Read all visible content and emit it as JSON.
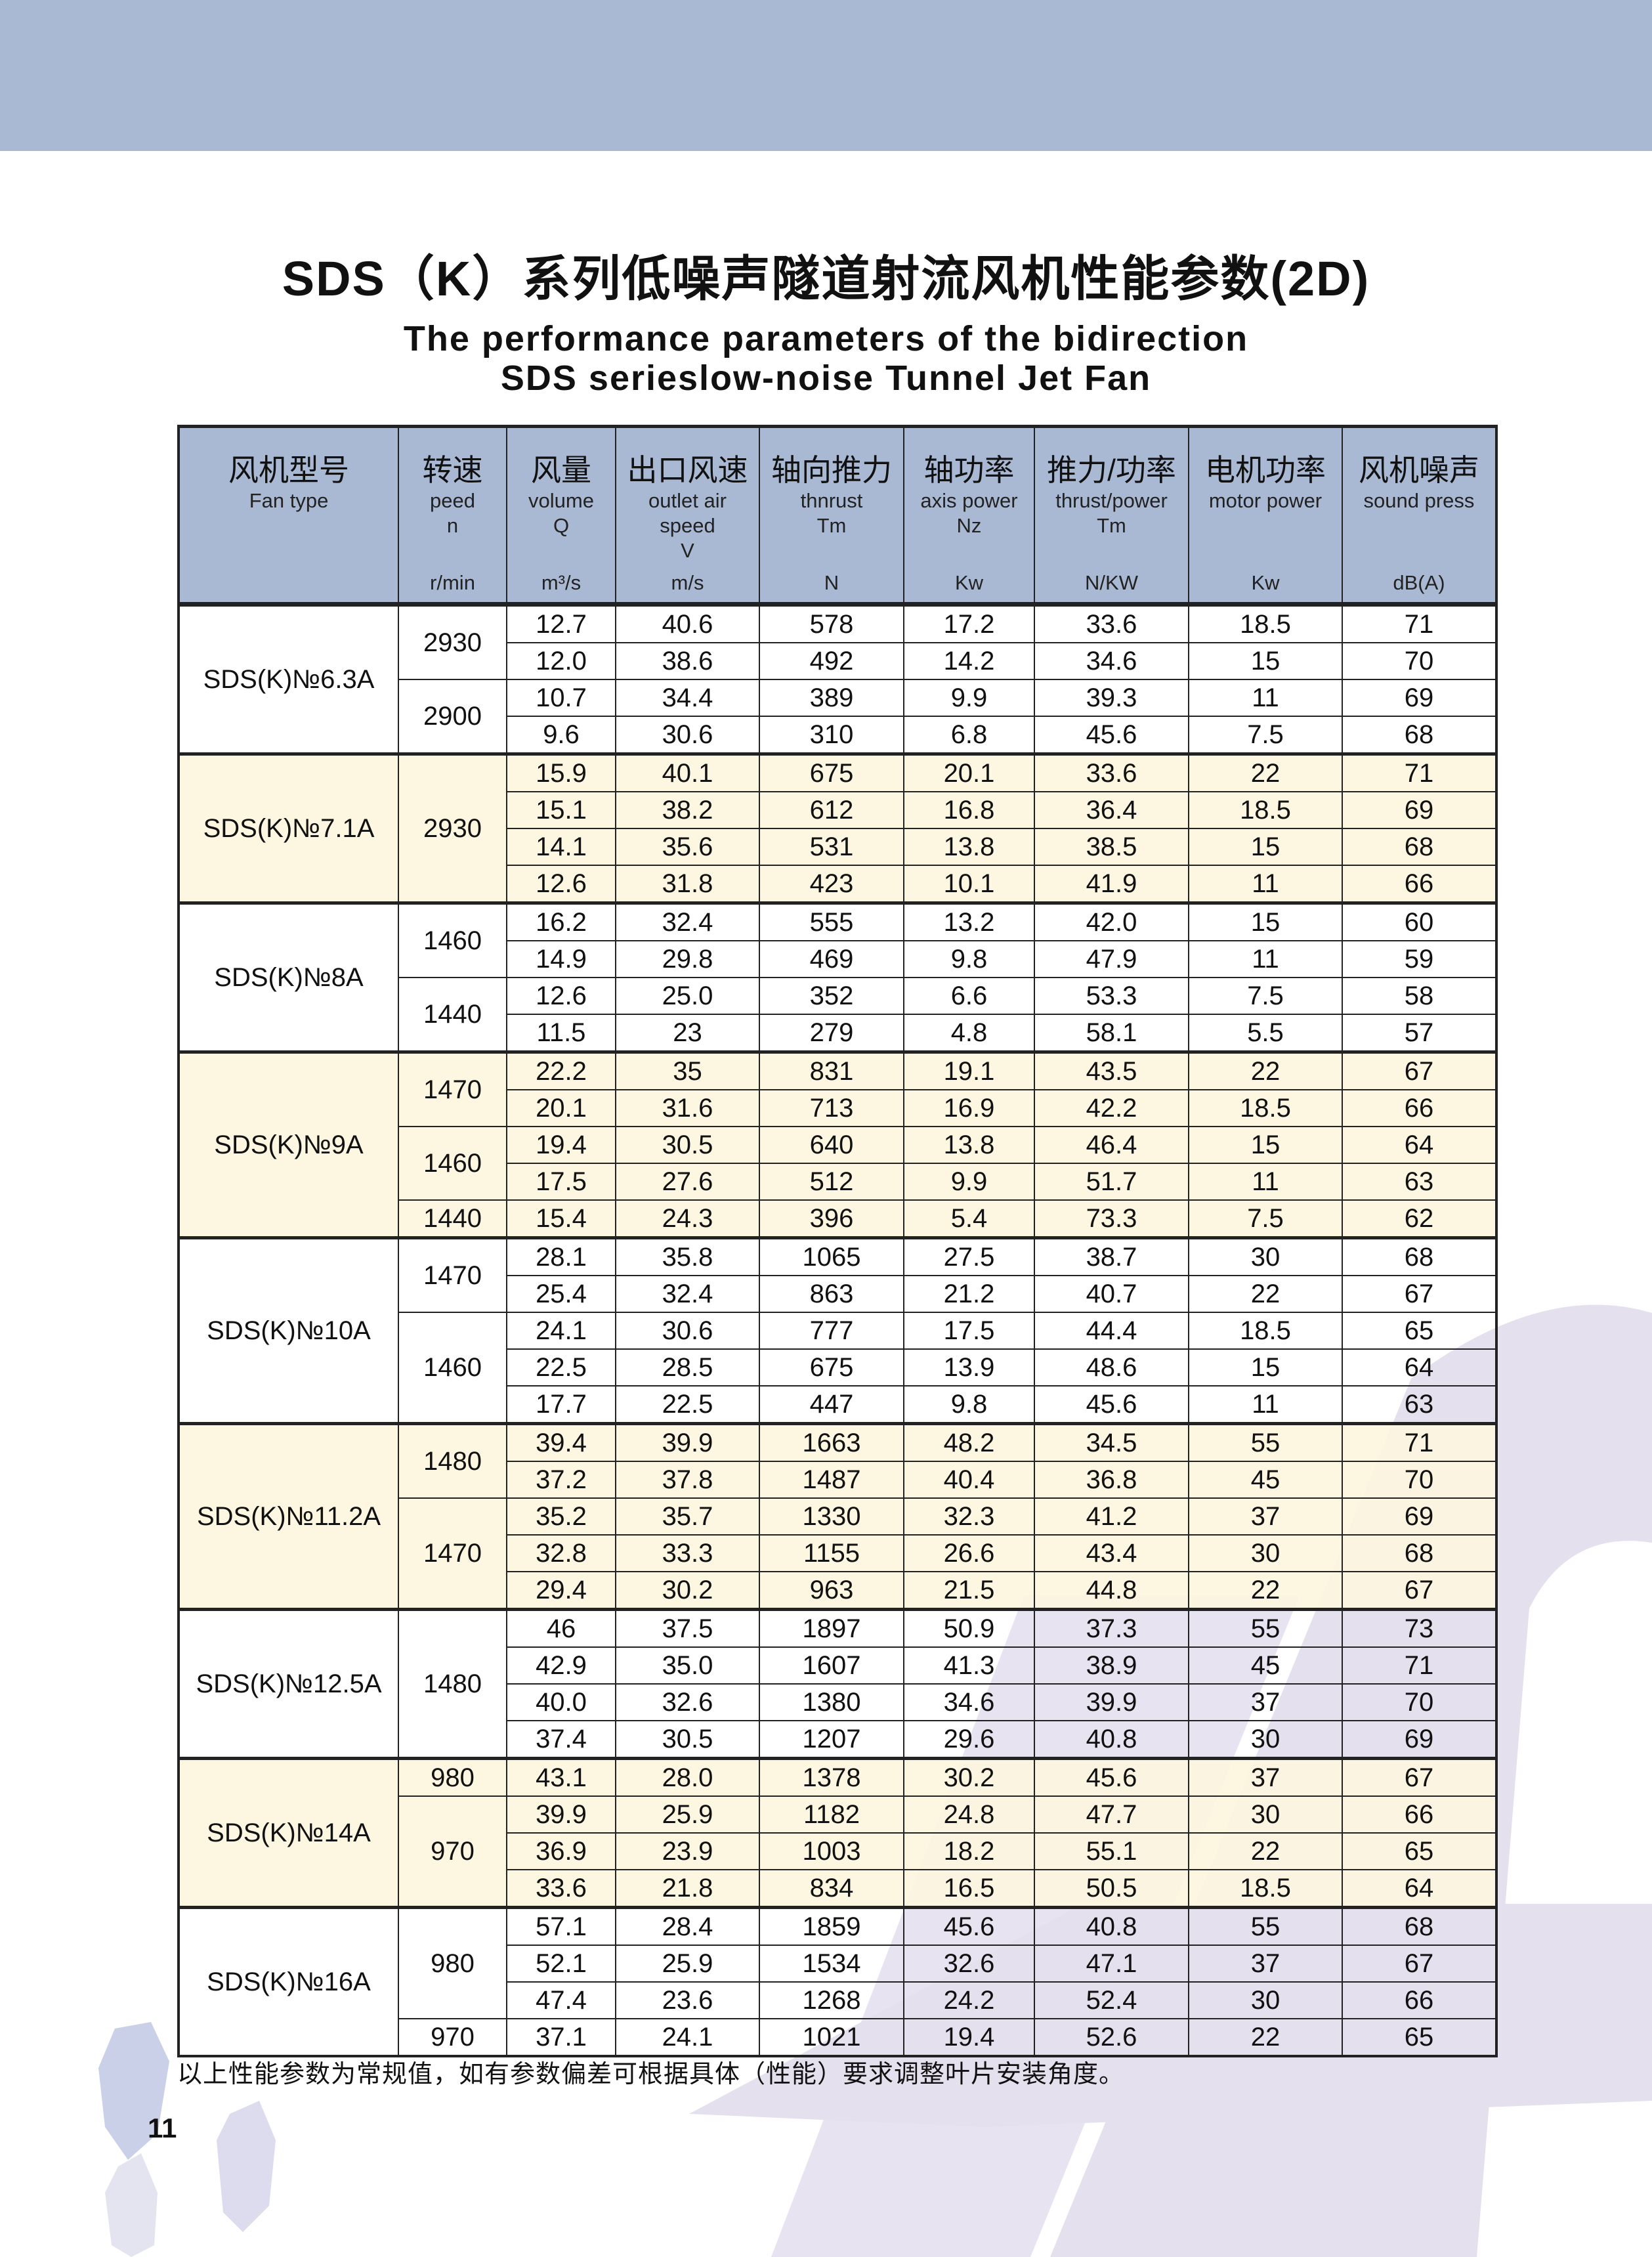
{
  "title_cn": "SDS（K）系列低噪声隧道射流风机性能参数(2D)",
  "title_en_line1": "The performance parameters of the bidirection",
  "title_en_line2": "SDS serieslow-noise Tunnel Jet Fan",
  "colors": {
    "banner": "#a9b9d3",
    "header_bg": "#a9b9d3",
    "cream_row": "#fdf5de",
    "decor": "#e4e0ee"
  },
  "columns": [
    {
      "cn": "风机型号",
      "en": "Fan type",
      "unit": ""
    },
    {
      "cn": "转速",
      "en": "peed\nn",
      "unit": "r/min"
    },
    {
      "cn": "风量",
      "en": "volume\nQ",
      "unit": "m³/s"
    },
    {
      "cn": "出口风速",
      "en": "outlet air\nspeed\nV",
      "unit": "m/s"
    },
    {
      "cn": "轴向推力",
      "en": "thnrust\nTm",
      "unit": "N"
    },
    {
      "cn": "轴功率",
      "en": "axis power\nNz",
      "unit": "Kw"
    },
    {
      "cn": "推力/功率",
      "en": "thrust/power\nTm",
      "unit": "N/KW"
    },
    {
      "cn": "电机功率",
      "en": "motor power",
      "unit": "Kw"
    },
    {
      "cn": "风机噪声",
      "en": "sound press",
      "unit": "dB(A)"
    }
  ],
  "groups": [
    {
      "model": "SDS(K)№6.3A",
      "speeds": [
        {
          "n": "2930",
          "rows": [
            [
              "12.7",
              "40.6",
              "578",
              "17.2",
              "33.6",
              "18.5",
              "71"
            ],
            [
              "12.0",
              "38.6",
              "492",
              "14.2",
              "34.6",
              "15",
              "70"
            ]
          ]
        },
        {
          "n": "2900",
          "rows": [
            [
              "10.7",
              "34.4",
              "389",
              "9.9",
              "39.3",
              "11",
              "69"
            ],
            [
              "9.6",
              "30.6",
              "310",
              "6.8",
              "45.6",
              "7.5",
              "68"
            ]
          ]
        }
      ]
    },
    {
      "model": "SDS(K)№7.1A",
      "speeds": [
        {
          "n": "2930",
          "rows": [
            [
              "15.9",
              "40.1",
              "675",
              "20.1",
              "33.6",
              "22",
              "71"
            ],
            [
              "15.1",
              "38.2",
              "612",
              "16.8",
              "36.4",
              "18.5",
              "69"
            ],
            [
              "14.1",
              "35.6",
              "531",
              "13.8",
              "38.5",
              "15",
              "68"
            ],
            [
              "12.6",
              "31.8",
              "423",
              "10.1",
              "41.9",
              "11",
              "66"
            ]
          ]
        }
      ]
    },
    {
      "model": "SDS(K)№8A",
      "speeds": [
        {
          "n": "1460",
          "rows": [
            [
              "16.2",
              "32.4",
              "555",
              "13.2",
              "42.0",
              "15",
              "60"
            ],
            [
              "14.9",
              "29.8",
              "469",
              "9.8",
              "47.9",
              "11",
              "59"
            ]
          ]
        },
        {
          "n": "1440",
          "rows": [
            [
              "12.6",
              "25.0",
              "352",
              "6.6",
              "53.3",
              "7.5",
              "58"
            ],
            [
              "11.5",
              "23",
              "279",
              "4.8",
              "58.1",
              "5.5",
              "57"
            ]
          ]
        }
      ]
    },
    {
      "model": "SDS(K)№9A",
      "speeds": [
        {
          "n": "1470",
          "rows": [
            [
              "22.2",
              "35",
              "831",
              "19.1",
              "43.5",
              "22",
              "67"
            ],
            [
              "20.1",
              "31.6",
              "713",
              "16.9",
              "42.2",
              "18.5",
              "66"
            ]
          ]
        },
        {
          "n": "1460",
          "rows": [
            [
              "19.4",
              "30.5",
              "640",
              "13.8",
              "46.4",
              "15",
              "64"
            ],
            [
              "17.5",
              "27.6",
              "512",
              "9.9",
              "51.7",
              "11",
              "63"
            ]
          ]
        },
        {
          "n": "1440",
          "rows": [
            [
              "15.4",
              "24.3",
              "396",
              "5.4",
              "73.3",
              "7.5",
              "62"
            ]
          ]
        }
      ]
    },
    {
      "model": "SDS(K)№10A",
      "speeds": [
        {
          "n": "1470",
          "rows": [
            [
              "28.1",
              "35.8",
              "1065",
              "27.5",
              "38.7",
              "30",
              "68"
            ],
            [
              "25.4",
              "32.4",
              "863",
              "21.2",
              "40.7",
              "22",
              "67"
            ]
          ]
        },
        {
          "n": "1460",
          "rows": [
            [
              "24.1",
              "30.6",
              "777",
              "17.5",
              "44.4",
              "18.5",
              "65"
            ],
            [
              "22.5",
              "28.5",
              "675",
              "13.9",
              "48.6",
              "15",
              "64"
            ],
            [
              "17.7",
              "22.5",
              "447",
              "9.8",
              "45.6",
              "11",
              "63"
            ]
          ]
        }
      ]
    },
    {
      "model": "SDS(K)№11.2A",
      "speeds": [
        {
          "n": "1480",
          "rows": [
            [
              "39.4",
              "39.9",
              "1663",
              "48.2",
              "34.5",
              "55",
              "71"
            ],
            [
              "37.2",
              "37.8",
              "1487",
              "40.4",
              "36.8",
              "45",
              "70"
            ]
          ]
        },
        {
          "n": "1470",
          "rows": [
            [
              "35.2",
              "35.7",
              "1330",
              "32.3",
              "41.2",
              "37",
              "69"
            ],
            [
              "32.8",
              "33.3",
              "1155",
              "26.6",
              "43.4",
              "30",
              "68"
            ],
            [
              "29.4",
              "30.2",
              "963",
              "21.5",
              "44.8",
              "22",
              "67"
            ]
          ]
        }
      ]
    },
    {
      "model": "SDS(K)№12.5A",
      "speeds": [
        {
          "n": "1480",
          "rows": [
            [
              "46",
              "37.5",
              "1897",
              "50.9",
              "37.3",
              "55",
              "73"
            ],
            [
              "42.9",
              "35.0",
              "1607",
              "41.3",
              "38.9",
              "45",
              "71"
            ],
            [
              "40.0",
              "32.6",
              "1380",
              "34.6",
              "39.9",
              "37",
              "70"
            ],
            [
              "37.4",
              "30.5",
              "1207",
              "29.6",
              "40.8",
              "30",
              "69"
            ]
          ]
        }
      ]
    },
    {
      "model": "SDS(K)№14A",
      "speeds": [
        {
          "n": "980",
          "rows": [
            [
              "43.1",
              "28.0",
              "1378",
              "30.2",
              "45.6",
              "37",
              "67"
            ]
          ]
        },
        {
          "n": "970",
          "rows": [
            [
              "39.9",
              "25.9",
              "1182",
              "24.8",
              "47.7",
              "30",
              "66"
            ],
            [
              "36.9",
              "23.9",
              "1003",
              "18.2",
              "55.1",
              "22",
              "65"
            ],
            [
              "33.6",
              "21.8",
              "834",
              "16.5",
              "50.5",
              "18.5",
              "64"
            ]
          ]
        }
      ]
    },
    {
      "model": "SDS(K)№16A",
      "speeds": [
        {
          "n": "980",
          "rows": [
            [
              "57.1",
              "28.4",
              "1859",
              "45.6",
              "40.8",
              "55",
              "68"
            ],
            [
              "52.1",
              "25.9",
              "1534",
              "32.6",
              "47.1",
              "37",
              "67"
            ],
            [
              "47.4",
              "23.6",
              "1268",
              "24.2",
              "52.4",
              "30",
              "66"
            ]
          ]
        },
        {
          "n": "970",
          "rows": [
            [
              "37.1",
              "24.1",
              "1021",
              "19.4",
              "52.6",
              "22",
              "65"
            ]
          ]
        }
      ]
    }
  ],
  "footnote": "以上性能参数为常规值，如有参数偏差可根据具体（性能）要求调整叶片安装角度。",
  "page_number": "11"
}
